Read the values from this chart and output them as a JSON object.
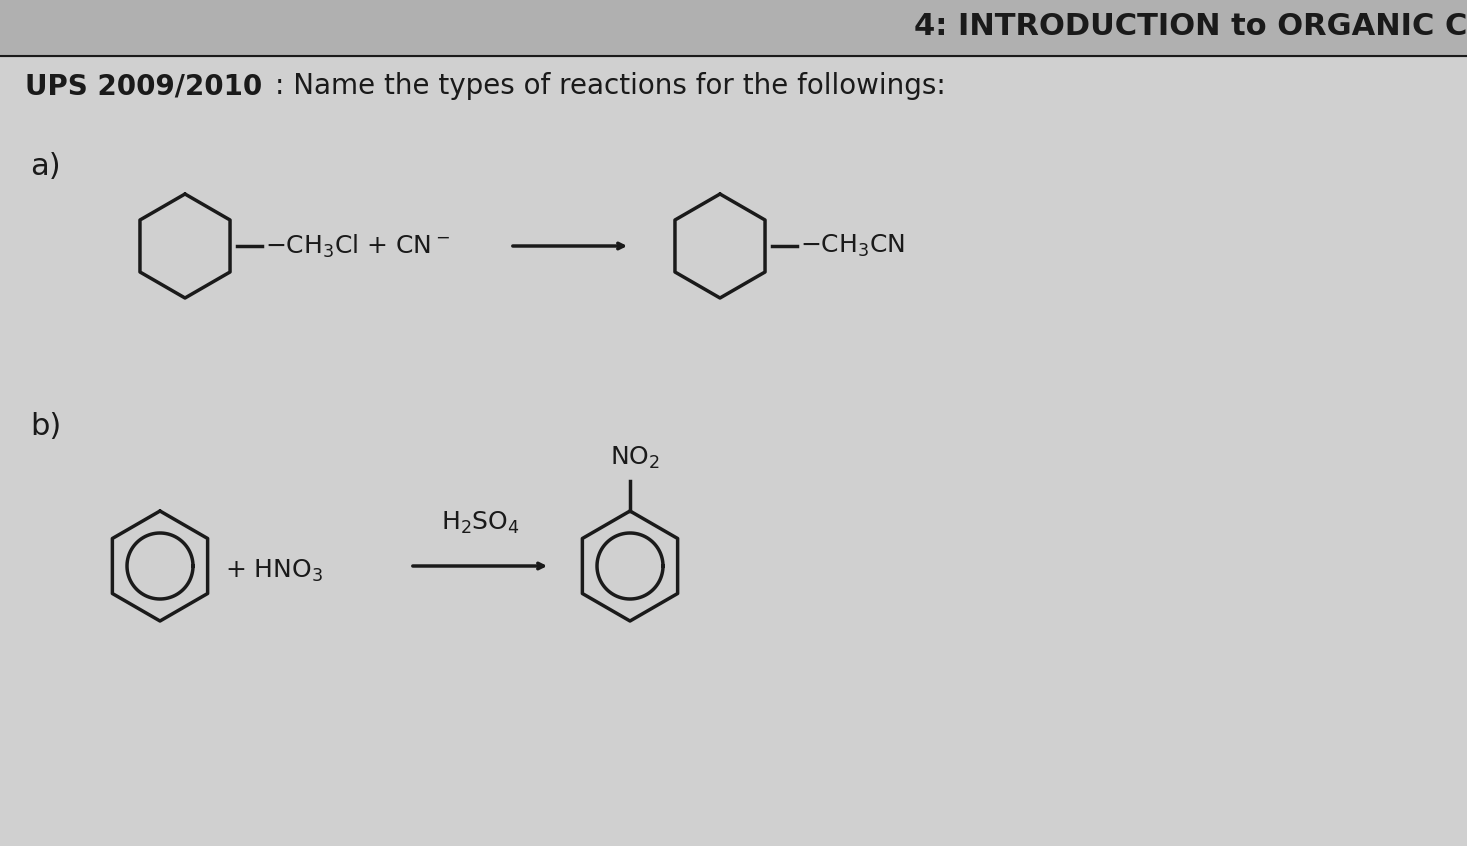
{
  "bg_color": "#d0d0d0",
  "title_bold": "UPS 2009/2010",
  "title_normal": ": Name the types of reactions for the followings:",
  "header_text": "4: INTRODUCTION to ORGANIC C",
  "label_a": "a)",
  "label_b": "b)",
  "reaction_a_middle": "CH₃Cl + CN⁻",
  "reaction_a_right": "CH₃CN",
  "reaction_b_left": "+ HNO₃",
  "reaction_b_above_arrow": "H₂SO₄",
  "reaction_b_right_top": "NO₂",
  "text_color": "#1a1a1a",
  "line_color": "#1a1a1a",
  "font_size_title": 20,
  "font_size_label": 22,
  "font_size_reaction": 20,
  "font_size_header": 22
}
